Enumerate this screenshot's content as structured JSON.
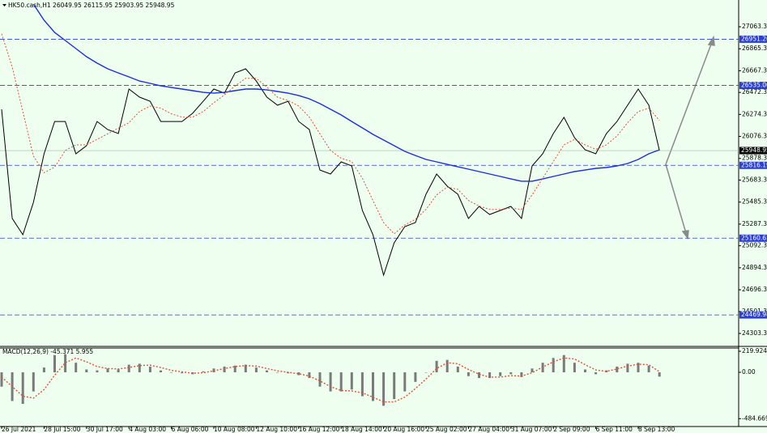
{
  "chart_data": [
    {
      "type": "line",
      "title": "HK50.cash,H1  26049.95 26115.95 25903.95 25948.95",
      "categories": [
        "26 Jul 2021",
        null,
        null,
        null,
        "28 Jul 15:00",
        null,
        null,
        null,
        "30 Jul 17:00",
        null,
        null,
        null,
        "4 Aug 03:00",
        null,
        null,
        null,
        "6 Aug 06:00",
        null,
        null,
        null,
        "10 Aug 08:00",
        null,
        null,
        null,
        "12 Aug 10:00",
        null,
        null,
        null,
        "16 Aug 12:00",
        null,
        null,
        null,
        "18 Aug 14:00",
        null,
        null,
        null,
        "20 Aug 16:00",
        null,
        null,
        null,
        "25 Aug 02:00",
        null,
        null,
        null,
        "27 Aug 04:00",
        null,
        null,
        null,
        "31 Aug 07:00",
        null,
        null,
        null,
        "2 Sep 09:00",
        null,
        null,
        null,
        "6 Sep 11:00",
        null,
        null,
        null,
        "8 Sep 13:00",
        null,
        null
      ],
      "series": [
        {
          "color": "#000000",
          "values": [
            26320,
            25338,
            25192,
            25483,
            25920,
            26211,
            26211,
            25920,
            25993,
            26211,
            26138,
            26102,
            26503,
            26430,
            26393,
            26211,
            26211,
            26211,
            26284,
            26393,
            26503,
            26466,
            26648,
            26685,
            26575,
            26430,
            26357,
            26393,
            26211,
            26138,
            25774,
            25738,
            25847,
            25811,
            25410,
            25192,
            24828,
            25119,
            25265,
            25301,
            25556,
            25738,
            25629,
            25556,
            25338,
            25447,
            25374,
            25410,
            25447,
            25338,
            25811,
            25920,
            26102,
            26248,
            26065,
            25956,
            25920,
            26102,
            26211,
            26357,
            26503,
            26357,
            25949
          ]
        },
        {
          "color": "#1a2ee0",
          "values": [
            null,
            null,
            null,
            27267,
            27122,
            27012,
            26940,
            26867,
            26794,
            26736,
            26685,
            26648,
            26612,
            26575,
            26554,
            26532,
            26517,
            26503,
            26488,
            26473,
            26466,
            26473,
            26488,
            26503,
            26503,
            26495,
            26481,
            26466,
            26444,
            26415,
            26372,
            26321,
            26270,
            26211,
            26153,
            26095,
            26044,
            25993,
            25942,
            25905,
            25869,
            25847,
            25825,
            25803,
            25782,
            25760,
            25738,
            25716,
            25694,
            25673,
            25673,
            25694,
            25716,
            25738,
            25760,
            25774,
            25789,
            25796,
            25811,
            25833,
            25869,
            25920,
            25956
          ]
        },
        {
          "color": "#e0503a",
          "dashed": true,
          "values": [
            27000,
            26700,
            26300,
            25900,
            25750,
            25800,
            25950,
            26000,
            26000,
            26050,
            26100,
            26150,
            26200,
            26300,
            26350,
            26330,
            26280,
            26250,
            26250,
            26300,
            26380,
            26450,
            26530,
            26600,
            26600,
            26520,
            26430,
            26400,
            26350,
            26250,
            26100,
            25950,
            25880,
            25850,
            25700,
            25500,
            25300,
            25200,
            25280,
            25330,
            25420,
            25550,
            25620,
            25600,
            25500,
            25450,
            25420,
            25420,
            25430,
            25420,
            25550,
            25700,
            25850,
            26000,
            26050,
            26000,
            25960,
            26000,
            26080,
            26200,
            26300,
            26330,
            26220
          ]
        }
      ],
      "ylim": [
        24194,
        27304
      ],
      "yticks": [
        {
          "value": 27063.3,
          "label": "27063.30"
        },
        {
          "value": 26865.3,
          "label": "26865.30"
        },
        {
          "value": 26667.3,
          "label": "26667.30"
        },
        {
          "value": 26472.3,
          "label": "26472.30"
        },
        {
          "value": 26274.3,
          "label": "26274.30"
        },
        {
          "value": 26076.3,
          "label": "26076.30"
        },
        {
          "value": 25878.3,
          "label": "25878.30"
        },
        {
          "value": 25683.3,
          "label": "25683.30"
        },
        {
          "value": 25485.3,
          "label": "25485.30"
        },
        {
          "value": 25287.3,
          "label": "25287.30"
        },
        {
          "value": 25092.3,
          "label": "25092.30"
        },
        {
          "value": 24894.3,
          "label": "24894.30"
        },
        {
          "value": 24696.3,
          "label": "24696.30"
        },
        {
          "value": 24501.3,
          "label": "24501.30"
        },
        {
          "value": 24303.3,
          "label": "24303.30"
        }
      ],
      "levels": [
        26951.26,
        {
          "value": 26535,
          "label": "26535.00"
        },
        25816.19,
        25160.63,
        24469.98
      ],
      "level_color": "#2b3fd6",
      "last_price": 25948.95
    },
    {
      "type": "macd",
      "title": "MACD(12,26,9) -45.371 5.955",
      "series": [
        {
          "color": "#7a7a7a",
          "values": [
            -150,
            -300,
            -330,
            -200,
            50,
            180,
            190,
            100,
            30,
            20,
            40,
            30,
            80,
            90,
            60,
            20,
            0,
            -10,
            -20,
            10,
            40,
            60,
            70,
            80,
            50,
            20,
            0,
            -10,
            -30,
            -60,
            -150,
            -200,
            -200,
            -180,
            -250,
            -300,
            -350,
            -280,
            -200,
            -100,
            0,
            120,
            130,
            60,
            -40,
            -60,
            -60,
            -40,
            -20,
            -50,
            40,
            100,
            150,
            180,
            100,
            30,
            -20,
            20,
            60,
            90,
            100,
            70,
            -45
          ]
        },
        {
          "color": "#e0503a",
          "dashed": true,
          "values": [
            -50,
            -150,
            -250,
            -270,
            -180,
            -30,
            100,
            150,
            110,
            60,
            40,
            35,
            50,
            70,
            75,
            50,
            20,
            5,
            -10,
            -5,
            15,
            40,
            60,
            70,
            65,
            40,
            15,
            0,
            -15,
            -40,
            -90,
            -150,
            -190,
            -195,
            -215,
            -260,
            -310,
            -310,
            -260,
            -170,
            -70,
            40,
            100,
            90,
            30,
            -20,
            -50,
            -50,
            -35,
            -40,
            -5,
            55,
            110,
            150,
            140,
            80,
            25,
            10,
            35,
            65,
            85,
            80,
            6
          ]
        }
      ],
      "ylim": [
        -567,
        254
      ],
      "yticks": [
        219.924,
        {
          "value": 0,
          "label": "0.00"
        },
        -484.669
      ]
    }
  ]
}
